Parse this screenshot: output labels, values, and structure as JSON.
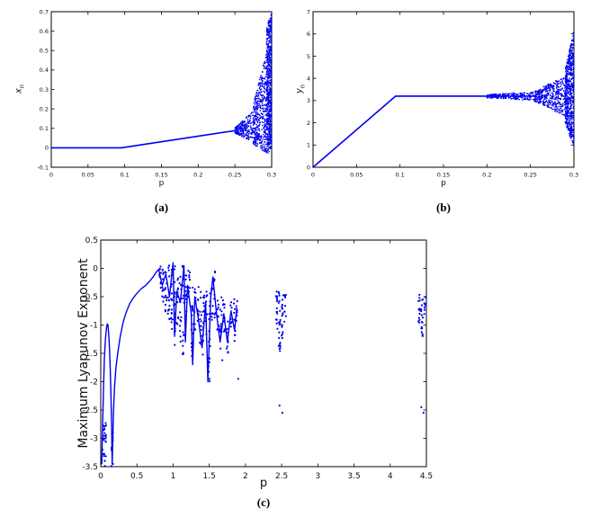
{
  "page": {
    "background": "#ffffff"
  },
  "captions": {
    "a": "(a)",
    "b": "(b)",
    "c": "(c)"
  },
  "chart_data": [
    {
      "id": "a",
      "type": "scatter",
      "title": "",
      "xlabel": "p",
      "ylabel_var": "x",
      "ylabel_sub": "n",
      "xlim": [
        0,
        0.3
      ],
      "ylim": [
        -0.1,
        0.7
      ],
      "xticks": [
        0,
        0.05,
        0.1,
        0.15,
        0.2,
        0.25,
        0.3
      ],
      "xtick_labels": [
        "0",
        "0.05",
        "0.1",
        "0.15",
        "0.2",
        "0.25",
        "0.3"
      ],
      "yticks": [
        -0.1,
        0,
        0.1,
        0.2,
        0.3,
        0.4,
        0.5,
        0.6,
        0.7
      ],
      "ytick_labels": [
        "-0.1",
        "0",
        "0.1",
        "0.2",
        "0.3",
        "0.4",
        "0.5",
        "0.6",
        "0.7"
      ],
      "color": "#0000EE",
      "polylines": [
        [
          [
            0,
            0
          ],
          [
            0.095,
            0
          ]
        ],
        [
          [
            0.095,
            0
          ],
          [
            0.25,
            0.088
          ]
        ]
      ],
      "bands": [
        {
          "x0": 0.25,
          "x1": 0.275,
          "ylo0": 0.075,
          "yhi0": 0.105,
          "ylo1": 0.03,
          "yhi1": 0.19,
          "count": 260
        },
        {
          "x0": 0.275,
          "x1": 0.293,
          "ylo0": 0.02,
          "yhi0": 0.22,
          "ylo1": -0.03,
          "yhi1": 0.5,
          "count": 420
        },
        {
          "x0": 0.293,
          "x1": 0.3,
          "ylo0": -0.04,
          "yhi0": 0.62,
          "ylo1": 0.0,
          "yhi1": 0.7,
          "count": 650
        }
      ],
      "clusters": [],
      "points": []
    },
    {
      "id": "b",
      "type": "scatter",
      "title": "",
      "xlabel": "p",
      "ylabel_var": "y",
      "ylabel_sub": "n",
      "xlim": [
        0,
        0.3
      ],
      "ylim": [
        0,
        7
      ],
      "xticks": [
        0,
        0.05,
        0.1,
        0.15,
        0.2,
        0.25,
        0.3
      ],
      "xtick_labels": [
        "0",
        "0.05",
        "0.1",
        "0.15",
        "0.2",
        "0.25",
        "0.3"
      ],
      "yticks": [
        0,
        1,
        2,
        3,
        4,
        5,
        6,
        7
      ],
      "ytick_labels": [
        "0",
        "1",
        "2",
        "3",
        "4",
        "5",
        "6",
        "7"
      ],
      "color": "#0000EE",
      "polylines": [
        [
          [
            0,
            0
          ],
          [
            0.095,
            3.2
          ]
        ],
        [
          [
            0.095,
            3.2
          ],
          [
            0.255,
            3.2
          ]
        ]
      ],
      "bands": [
        {
          "x0": 0.2,
          "x1": 0.255,
          "ylo0": 3.12,
          "yhi0": 3.28,
          "ylo1": 3.0,
          "yhi1": 3.4,
          "count": 220
        },
        {
          "x0": 0.255,
          "x1": 0.29,
          "ylo0": 2.95,
          "yhi0": 3.45,
          "ylo1": 2.3,
          "yhi1": 4.1,
          "count": 420
        },
        {
          "x0": 0.29,
          "x1": 0.3,
          "ylo0": 2.0,
          "yhi0": 4.4,
          "ylo1": 0.9,
          "yhi1": 6.2,
          "count": 650
        }
      ],
      "clusters": [],
      "points": []
    },
    {
      "id": "c",
      "type": "scatter",
      "title": "",
      "xlabel": "p",
      "ylabel": "Maximum Lyapunov Exponent",
      "xlim": [
        0,
        4.5
      ],
      "ylim": [
        -3.5,
        0.5
      ],
      "xticks": [
        0,
        0.5,
        1,
        1.5,
        2,
        2.5,
        3,
        3.5,
        4,
        4.5
      ],
      "xtick_labels": [
        "0",
        "0.5",
        "1",
        "1.5",
        "2",
        "2.5",
        "3",
        "3.5",
        "4",
        "4.5"
      ],
      "yticks": [
        -3.5,
        -3,
        -2.5,
        -2,
        -1.5,
        -1,
        -0.5,
        0,
        0.5
      ],
      "ytick_labels": [
        "-3.5",
        "-3",
        "-2.5",
        "-2",
        "-1.5",
        "-1",
        "-0.5",
        "0",
        "0.5"
      ],
      "color": "#0000EE",
      "polylines": [
        [
          [
            0.015,
            -3.45
          ],
          [
            0.02,
            -3.1
          ],
          [
            0.03,
            -2.55
          ],
          [
            0.04,
            -2.05
          ],
          [
            0.05,
            -1.6
          ],
          [
            0.065,
            -1.25
          ],
          [
            0.08,
            -1.05
          ],
          [
            0.09,
            -0.98
          ],
          [
            0.1,
            -1.0
          ],
          [
            0.11,
            -1.15
          ],
          [
            0.12,
            -1.4
          ],
          [
            0.13,
            -1.75
          ],
          [
            0.14,
            -2.2
          ],
          [
            0.15,
            -2.8
          ],
          [
            0.158,
            -3.45
          ],
          [
            0.165,
            -3.1
          ],
          [
            0.175,
            -2.55
          ],
          [
            0.19,
            -2.1
          ],
          [
            0.21,
            -1.75
          ],
          [
            0.24,
            -1.45
          ],
          [
            0.27,
            -1.2
          ],
          [
            0.31,
            -0.95
          ],
          [
            0.35,
            -0.78
          ],
          [
            0.4,
            -0.62
          ],
          [
            0.45,
            -0.52
          ],
          [
            0.5,
            -0.44
          ],
          [
            0.56,
            -0.36
          ],
          [
            0.62,
            -0.3
          ],
          [
            0.68,
            -0.22
          ],
          [
            0.73,
            -0.14
          ],
          [
            0.77,
            -0.06
          ],
          [
            0.8,
            -0.02
          ]
        ],
        [
          [
            0.8,
            -0.02
          ],
          [
            0.85,
            -0.3
          ],
          [
            0.9,
            -0.1
          ],
          [
            0.95,
            -0.5
          ],
          [
            1.0,
            0.1
          ],
          [
            1.02,
            -1.2
          ],
          [
            1.05,
            -0.4
          ],
          [
            1.1,
            -0.6
          ],
          [
            1.15,
            0.05
          ],
          [
            1.17,
            -1.3
          ],
          [
            1.2,
            -0.3
          ],
          [
            1.25,
            -0.8
          ],
          [
            1.27,
            -1.7
          ],
          [
            1.3,
            -0.5
          ],
          [
            1.35,
            -0.9
          ],
          [
            1.4,
            -1.4
          ],
          [
            1.45,
            -0.6
          ],
          [
            1.48,
            -2.0
          ],
          [
            1.52,
            -0.5
          ],
          [
            1.55,
            -0.15
          ],
          [
            1.6,
            -0.8
          ],
          [
            1.65,
            -1.3
          ],
          [
            1.7,
            -0.8
          ],
          [
            1.75,
            -1.3
          ],
          [
            1.8,
            -0.75
          ],
          [
            1.85,
            -1.1
          ],
          [
            1.88,
            -0.7
          ]
        ]
      ],
      "bands": [],
      "clusters": [
        {
          "x": 0.05,
          "ylo": -3.5,
          "yhi": -2.7,
          "count": 28,
          "xjit": 0.03
        },
        {
          "x": 0.16,
          "ylo": -3.5,
          "yhi": -2.9,
          "count": 14,
          "xjit": 0.012
        },
        {
          "x": 0.82,
          "ylo": -0.35,
          "yhi": 0.05,
          "count": 10
        },
        {
          "x": 0.86,
          "ylo": -0.6,
          "yhi": 0.0,
          "count": 12
        },
        {
          "x": 0.9,
          "ylo": -0.8,
          "yhi": -0.05,
          "count": 12
        },
        {
          "x": 0.94,
          "ylo": -0.9,
          "yhi": 0.05,
          "count": 14
        },
        {
          "x": 0.98,
          "ylo": -1.2,
          "yhi": 0.1,
          "count": 16
        },
        {
          "x": 1.02,
          "ylo": -1.5,
          "yhi": 0.15,
          "count": 18
        },
        {
          "x": 1.06,
          "ylo": -1.0,
          "yhi": -0.15,
          "count": 12
        },
        {
          "x": 1.1,
          "ylo": -1.3,
          "yhi": -0.1,
          "count": 14
        },
        {
          "x": 1.14,
          "ylo": -1.55,
          "yhi": 0.1,
          "count": 18
        },
        {
          "x": 1.18,
          "ylo": -0.85,
          "yhi": -0.1,
          "count": 12
        },
        {
          "x": 1.22,
          "ylo": -0.65,
          "yhi": 0.0,
          "count": 10
        },
        {
          "x": 1.26,
          "ylo": -1.9,
          "yhi": -0.25,
          "count": 16
        },
        {
          "x": 1.3,
          "ylo": -1.1,
          "yhi": -0.3,
          "count": 12
        },
        {
          "x": 1.34,
          "ylo": -0.95,
          "yhi": -0.3,
          "count": 10
        },
        {
          "x": 1.38,
          "ylo": -1.4,
          "yhi": -0.35,
          "count": 12
        },
        {
          "x": 1.42,
          "ylo": -1.6,
          "yhi": -0.3,
          "count": 14
        },
        {
          "x": 1.46,
          "ylo": -1.2,
          "yhi": -0.4,
          "count": 10
        },
        {
          "x": 1.5,
          "ylo": -2.2,
          "yhi": -0.4,
          "count": 16
        },
        {
          "x": 1.54,
          "ylo": -1.0,
          "yhi": -0.15,
          "count": 10
        },
        {
          "x": 1.58,
          "ylo": -0.9,
          "yhi": 0.0,
          "count": 10
        },
        {
          "x": 1.62,
          "ylo": -1.15,
          "yhi": -0.4,
          "count": 10
        },
        {
          "x": 1.66,
          "ylo": -1.45,
          "yhi": -0.5,
          "count": 12
        },
        {
          "x": 1.7,
          "ylo": -1.25,
          "yhi": -0.55,
          "count": 10
        },
        {
          "x": 1.75,
          "ylo": -1.5,
          "yhi": -0.5,
          "count": 10
        },
        {
          "x": 1.8,
          "ylo": -1.05,
          "yhi": -0.55,
          "count": 8
        },
        {
          "x": 1.85,
          "ylo": -1.35,
          "yhi": -0.5,
          "count": 10
        },
        {
          "x": 1.88,
          "ylo": -0.95,
          "yhi": -0.55,
          "count": 6
        },
        {
          "x": 2.43,
          "ylo": -1.1,
          "yhi": -0.4,
          "count": 14
        },
        {
          "x": 2.47,
          "ylo": -1.5,
          "yhi": -0.35,
          "count": 20
        },
        {
          "x": 2.51,
          "ylo": -1.25,
          "yhi": -0.4,
          "count": 16
        },
        {
          "x": 2.55,
          "ylo": -0.95,
          "yhi": -0.45,
          "count": 10
        },
        {
          "x": 4.4,
          "ylo": -1.0,
          "yhi": -0.45,
          "count": 12
        },
        {
          "x": 4.44,
          "ylo": -1.2,
          "yhi": -0.4,
          "count": 16
        },
        {
          "x": 4.48,
          "ylo": -0.9,
          "yhi": -0.5,
          "count": 10
        }
      ],
      "points": [
        [
          1.68,
          -1.62
        ],
        [
          1.9,
          -1.95
        ],
        [
          2.47,
          -2.42
        ],
        [
          2.51,
          -2.55
        ],
        [
          4.43,
          -2.45
        ],
        [
          4.46,
          -2.55
        ]
      ]
    }
  ]
}
